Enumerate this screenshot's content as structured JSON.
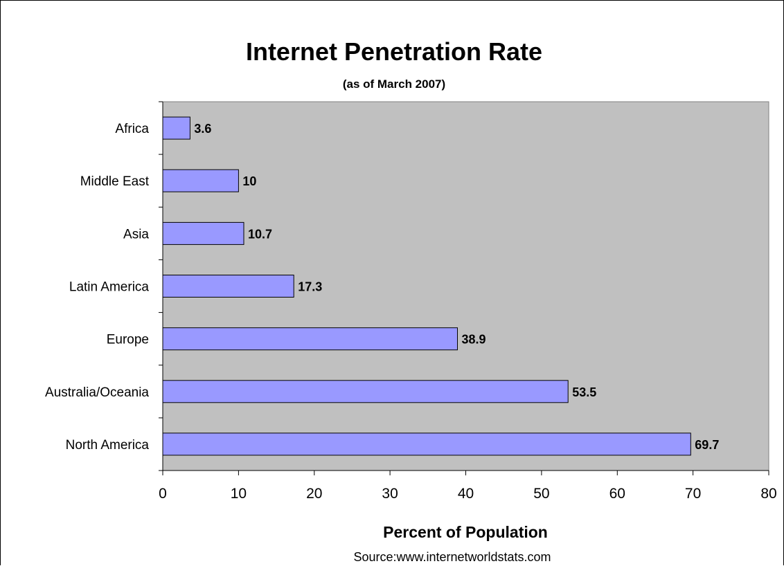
{
  "chart_data": {
    "type": "bar",
    "orientation": "horizontal",
    "title": "Internet Penetration Rate",
    "subtitle": "(as of March 2007)",
    "categories": [
      "Africa",
      "Middle East",
      "Asia",
      "Latin America",
      "Europe",
      "Australia/Oceania",
      "North America"
    ],
    "values": [
      3.6,
      10,
      10.7,
      17.3,
      38.9,
      53.5,
      69.7
    ],
    "data_labels": [
      "3.6",
      "10",
      "10.7",
      "17.3",
      "38.9",
      "53.5",
      "69.7"
    ],
    "xlabel": "Percent of Population",
    "ylabel": "",
    "xlim": [
      0,
      80
    ],
    "x_ticks": [
      0,
      10,
      20,
      30,
      40,
      50,
      60,
      70,
      80
    ],
    "x_tick_labels": [
      "0",
      "10",
      "20",
      "30",
      "40",
      "50",
      "60",
      "70",
      "80"
    ],
    "grid": false,
    "legend": "none",
    "source": "Source:www.internetworldstats.com",
    "colors": {
      "bar_fill": "#9999FF",
      "bar_stroke": "#000000",
      "plot_background": "#C0C0C0"
    }
  }
}
